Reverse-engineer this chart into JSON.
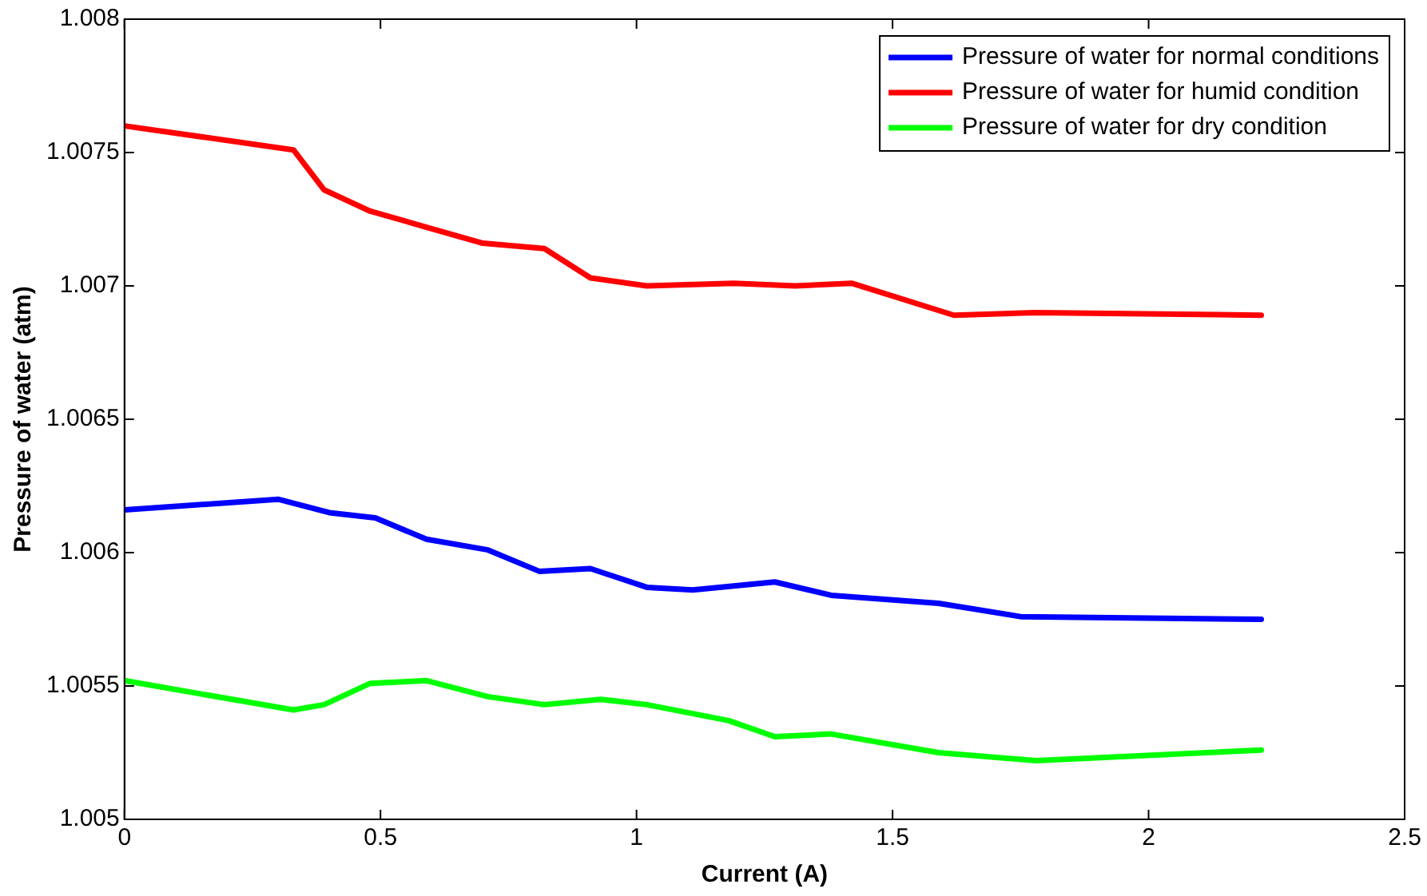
{
  "chart_data": {
    "type": "line",
    "xlabel": "Current (A)",
    "ylabel": "Pressure of water (atm)",
    "xlim": [
      0,
      2.5
    ],
    "xticks": [
      0,
      0.5,
      1,
      1.5,
      2,
      2.5
    ],
    "ylim": [
      1.005,
      1.008
    ],
    "yticks": [
      1.005,
      1.0055,
      1.006,
      1.0065,
      1.007,
      1.0075,
      1.008
    ],
    "grid": false,
    "legend": "top right",
    "marker": "none",
    "line_style": "solid",
    "series": [
      {
        "name": "Pressure of water for normal conditions",
        "color": "#0000ff",
        "x": [
          0,
          0.3,
          0.4,
          0.49,
          0.59,
          0.71,
          0.81,
          0.91,
          1.02,
          1.11,
          1.27,
          1.38,
          1.59,
          1.75,
          2.22
        ],
        "values": [
          1.00616,
          1.0062,
          1.00615,
          1.00613,
          1.00605,
          1.00601,
          1.00593,
          1.00594,
          1.00587,
          1.00586,
          1.00589,
          1.00584,
          1.00581,
          1.00576,
          1.00575
        ]
      },
      {
        "name": "Pressure of water for humid condition",
        "color": "#ff0000",
        "x": [
          0,
          0.33,
          0.39,
          0.48,
          0.59,
          0.7,
          0.82,
          0.91,
          1.02,
          1.19,
          1.31,
          1.42,
          1.62,
          1.78,
          2.22
        ],
        "values": [
          1.0076,
          1.00751,
          1.00736,
          1.00728,
          1.00722,
          1.00716,
          1.00714,
          1.00703,
          1.007,
          1.00701,
          1.007,
          1.00701,
          1.00689,
          1.0069,
          1.00689
        ]
      },
      {
        "name": "Pressure of water for dry condition",
        "color": "#00ff00",
        "x": [
          0,
          0.33,
          0.39,
          0.48,
          0.59,
          0.71,
          0.82,
          0.93,
          1.02,
          1.18,
          1.27,
          1.38,
          1.59,
          1.78,
          2.22
        ],
        "values": [
          1.00552,
          1.00541,
          1.00543,
          1.00551,
          1.00552,
          1.00546,
          1.00543,
          1.00545,
          1.00543,
          1.00537,
          1.00531,
          1.00532,
          1.00525,
          1.00522,
          1.00526
        ]
      }
    ]
  }
}
